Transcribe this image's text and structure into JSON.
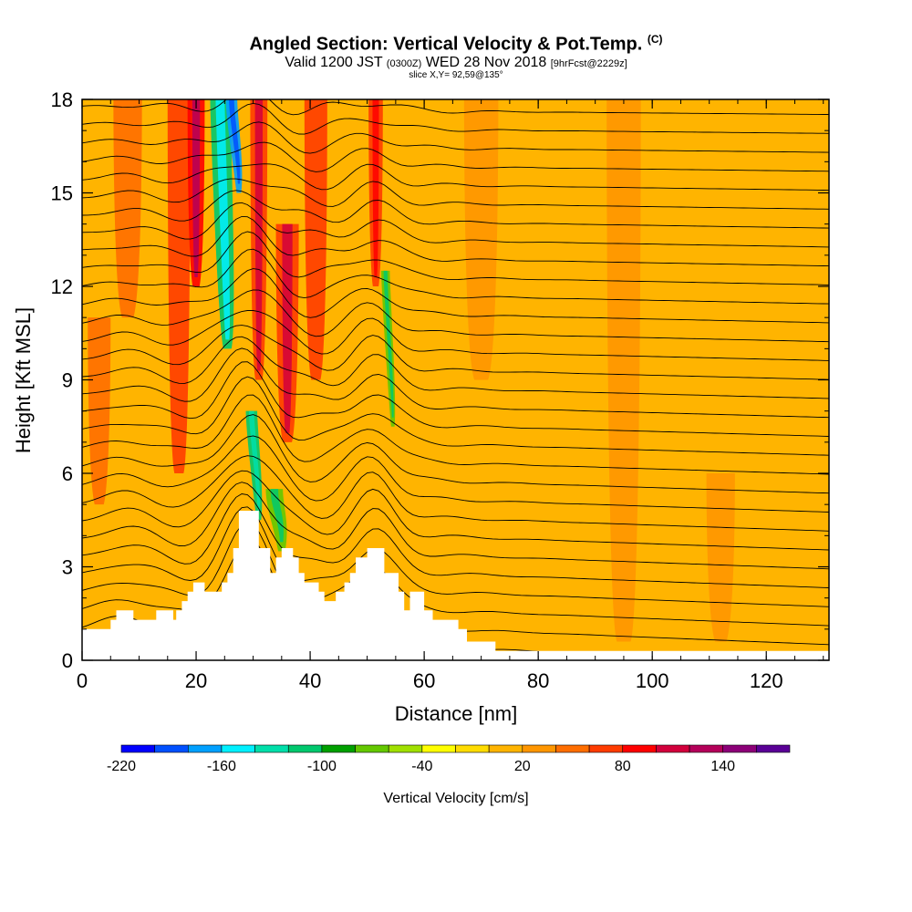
{
  "title": {
    "main": "Angled Section: Vertical Velocity & Pot.Temp.",
    "main_tag": "(C)",
    "valid_prefix": "Valid 1200 JST",
    "valid_z": "(0300Z)",
    "valid_date": "WED 28 Nov 2018",
    "fcst": "[9hrFcst@2229z]",
    "slice": "slice X,Y= 92,59@135°"
  },
  "chart_data": {
    "type": "heatmap",
    "title": "Angled Section: Vertical Velocity & Pot.Temp.",
    "xlabel": "Distance [nm]",
    "ylabel": "Height [Kft MSL]",
    "xlim": [
      0,
      131
    ],
    "ylim": [
      0,
      18
    ],
    "x_ticks": [
      0,
      20,
      40,
      60,
      80,
      100,
      120
    ],
    "y_ticks": [
      0,
      3,
      6,
      9,
      12,
      15,
      18
    ],
    "colorbar": {
      "label": "Vertical Velocity [cm/s]",
      "tick_values": [
        -220,
        -160,
        -100,
        -40,
        20,
        80,
        140
      ],
      "colors": [
        "#0000ff",
        "#0050ff",
        "#00a0ff",
        "#00f0ff",
        "#00dfaa",
        "#00c86e",
        "#00a000",
        "#64c800",
        "#a0e000",
        "#ffff00",
        "#ffdc00",
        "#ffb400",
        "#ff9600",
        "#ff6e00",
        "#ff3c00",
        "#ff0000",
        "#d2003c",
        "#b4005a",
        "#8c0078",
        "#5a0096"
      ],
      "start": -220,
      "step": 20
    },
    "vertical_velocity_features": [
      {
        "x": 3,
        "y0": 5,
        "y1": 11,
        "width": 4,
        "value": 50
      },
      {
        "x": 8,
        "y0": 11,
        "y1": 18,
        "width": 5,
        "value": 45
      },
      {
        "x": 17,
        "y0": 6,
        "y1": 18,
        "width": 4,
        "value": 60
      },
      {
        "x": 20,
        "y0": 12,
        "y1": 18,
        "width": 3,
        "value": 90
      },
      {
        "x": 25.5,
        "y0": 10,
        "y1": 18,
        "width": 3.5,
        "value": -120
      },
      {
        "x": 27.5,
        "y0": 15,
        "y1": 18,
        "width": 2,
        "value": -170
      },
      {
        "x": 31,
        "y0": 4.5,
        "y1": 8,
        "width": 2,
        "value": -110
      },
      {
        "x": 31,
        "y0": 9,
        "y1": 18,
        "width": 3,
        "value": 70
      },
      {
        "x": 36,
        "y0": 7,
        "y1": 14,
        "width": 4,
        "value": 75
      },
      {
        "x": 35,
        "y0": 3.5,
        "y1": 5.5,
        "width": 3,
        "value": -80
      },
      {
        "x": 41,
        "y0": 9,
        "y1": 18,
        "width": 4,
        "value": 60
      },
      {
        "x": 51.5,
        "y0": 12,
        "y1": 18,
        "width": 2.5,
        "value": 65
      },
      {
        "x": 54.5,
        "y0": 7.5,
        "y1": 12.5,
        "width": 1.5,
        "value": -80
      },
      {
        "x": 70,
        "y0": 9,
        "y1": 18,
        "width": 6,
        "value": 30
      },
      {
        "x": 95,
        "y0": 0.6,
        "y1": 18,
        "width": 6,
        "value": 30
      },
      {
        "x": 112,
        "y0": 0.6,
        "y1": 6,
        "width": 5,
        "value": 30
      }
    ],
    "theta_contour_count": 31,
    "terrain": [
      [
        0,
        1.0
      ],
      [
        5,
        1.0
      ],
      [
        5,
        1.3
      ],
      [
        6,
        1.3
      ],
      [
        6,
        1.6
      ],
      [
        9,
        1.6
      ],
      [
        9,
        1.3
      ],
      [
        13,
        1.3
      ],
      [
        13,
        1.6
      ],
      [
        16,
        1.6
      ],
      [
        16,
        1.3
      ],
      [
        16.5,
        1.3
      ],
      [
        16.5,
        1.6
      ],
      [
        17.5,
        1.6
      ],
      [
        17.5,
        1.9
      ],
      [
        18.5,
        1.9
      ],
      [
        18.5,
        2.2
      ],
      [
        19.5,
        2.2
      ],
      [
        19.5,
        2.5
      ],
      [
        21.5,
        2.5
      ],
      [
        21.5,
        2.2
      ],
      [
        24.5,
        2.2
      ],
      [
        24.5,
        2.5
      ],
      [
        25.5,
        2.5
      ],
      [
        25.5,
        2.8
      ],
      [
        26.5,
        2.8
      ],
      [
        26.5,
        3.6
      ],
      [
        27.5,
        3.6
      ],
      [
        27.5,
        4.8
      ],
      [
        31,
        4.8
      ],
      [
        31,
        3.6
      ],
      [
        33,
        3.6
      ],
      [
        33,
        2.8
      ],
      [
        34,
        2.8
      ],
      [
        34,
        3.3
      ],
      [
        35,
        3.3
      ],
      [
        35,
        3.6
      ],
      [
        37,
        3.6
      ],
      [
        37,
        3.3
      ],
      [
        38,
        3.3
      ],
      [
        38,
        2.8
      ],
      [
        39,
        2.8
      ],
      [
        39,
        2.5
      ],
      [
        41.5,
        2.5
      ],
      [
        41.5,
        2.2
      ],
      [
        42.5,
        2.2
      ],
      [
        42.5,
        1.9
      ],
      [
        44.5,
        1.9
      ],
      [
        44.5,
        2.2
      ],
      [
        46,
        2.2
      ],
      [
        46,
        2.5
      ],
      [
        47,
        2.5
      ],
      [
        47,
        2.8
      ],
      [
        48,
        2.8
      ],
      [
        48,
        3.3
      ],
      [
        50,
        3.3
      ],
      [
        50,
        3.6
      ],
      [
        53,
        3.6
      ],
      [
        53,
        2.8
      ],
      [
        55.5,
        2.8
      ],
      [
        55.5,
        2.2
      ],
      [
        56.5,
        2.2
      ],
      [
        56.5,
        1.6
      ],
      [
        57.5,
        1.6
      ],
      [
        57.5,
        2.2
      ],
      [
        60,
        2.2
      ],
      [
        60,
        1.6
      ],
      [
        61.5,
        1.6
      ],
      [
        61.5,
        1.3
      ],
      [
        66,
        1.3
      ],
      [
        66,
        1.0
      ],
      [
        67.5,
        1.0
      ],
      [
        67.5,
        0.6
      ],
      [
        72.5,
        0.6
      ],
      [
        72.5,
        0.3
      ],
      [
        131,
        0.3
      ],
      [
        131,
        0
      ]
    ]
  }
}
